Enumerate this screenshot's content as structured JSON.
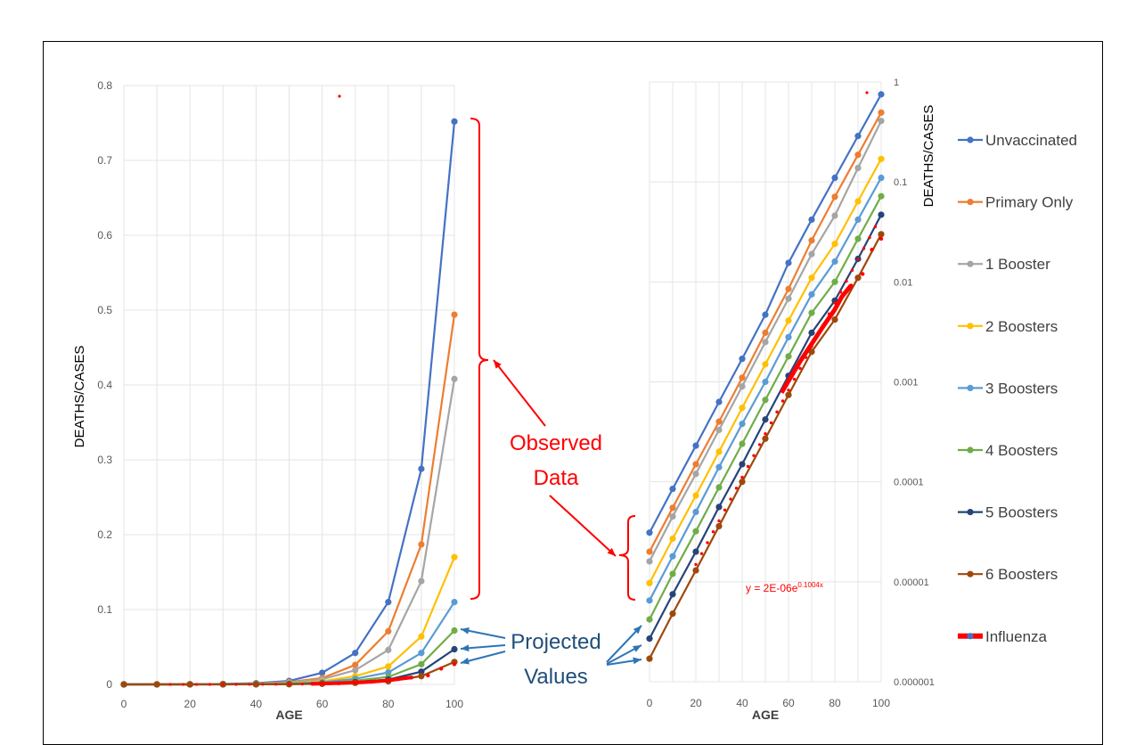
{
  "chart_data": [
    {
      "type": "line",
      "panel": "linear",
      "xlabel": "AGE",
      "ylabel": "DEATHS/CASES",
      "xlim": [
        0,
        100
      ],
      "ylim": [
        0,
        0.8
      ],
      "x_ticks": [
        "0",
        "20",
        "40",
        "60",
        "80",
        "100"
      ],
      "y_ticks": [
        "0",
        "0.1",
        "0.2",
        "0.3",
        "0.4",
        "0.5",
        "0.6",
        "0.7",
        "0.8"
      ],
      "grid": true,
      "x": [
        0,
        10,
        20,
        30,
        40,
        50,
        60,
        70,
        80,
        90,
        100
      ],
      "series": [
        {
          "name": "Unvaccinated",
          "color": "#4472c4",
          "values": [
            3.1e-05,
            8.5e-05,
            0.00023,
            0.00063,
            0.0017,
            0.0047,
            0.0155,
            0.042,
            0.11,
            0.288,
            0.752
          ]
        },
        {
          "name": "Primary Only",
          "color": "#ed7d31",
          "values": [
            2e-05,
            5.5e-05,
            0.00015,
            0.0004,
            0.0011,
            0.0031,
            0.0085,
            0.026,
            0.071,
            0.187,
            0.494
          ]
        },
        {
          "name": "1 Booster",
          "color": "#a5a5a5",
          "values": [
            1.6e-05,
            4.5e-05,
            0.00012,
            0.00033,
            0.0009,
            0.0025,
            0.0068,
            0.019,
            0.046,
            0.138,
            0.408
          ]
        },
        {
          "name": "2 Boosters",
          "color": "#ffc000",
          "values": [
            9.7e-06,
            2.7e-05,
            7.3e-05,
            0.0002,
            0.00055,
            0.0015,
            0.0041,
            0.011,
            0.024,
            0.064,
            0.17
          ]
        },
        {
          "name": "3 Boosters",
          "color": "#5b9bd5",
          "values": [
            6.5e-06,
            1.8e-05,
            5e-05,
            0.00014,
            0.00038,
            0.001,
            0.0028,
            0.0075,
            0.016,
            0.042,
            0.11
          ]
        },
        {
          "name": "4 Boosters",
          "color": "#70ad47",
          "values": [
            4.2e-06,
            1.2e-05,
            3.2e-05,
            8.8e-05,
            0.00024,
            0.00066,
            0.0018,
            0.0049,
            0.01,
            0.027,
            0.072
          ]
        },
        {
          "name": "5 Boosters",
          "color": "#264478",
          "values": [
            2.7e-06,
            7.5e-06,
            2e-05,
            5.6e-05,
            0.00015,
            0.00042,
            0.00115,
            0.0031,
            0.0065,
            0.017,
            0.047
          ]
        },
        {
          "name": "6 Boosters",
          "color": "#9e480e",
          "values": [
            1.7e-06,
            4.8e-06,
            1.3e-05,
            3.6e-05,
            0.0001,
            0.00027,
            0.00074,
            0.002,
            0.0042,
            0.011,
            0.03
          ]
        },
        {
          "name": "Influenza",
          "color": "#ff0000",
          "x": [
            57,
            65,
            70,
            75,
            80,
            83,
            87,
            92,
            96,
            100
          ],
          "values": [
            0.00078,
            0.0016,
            0.0024,
            0.0036,
            0.0053,
            0.0071,
            0.0092,
            0.012,
            0.021,
            0.027
          ]
        }
      ]
    },
    {
      "type": "line",
      "panel": "log",
      "xlabel": "AGE",
      "ylabel": "DEATHS/CASES",
      "xlim": [
        0,
        100
      ],
      "ylim": [
        1e-06,
        1
      ],
      "log_scale": true,
      "x_ticks": [
        "0",
        "20",
        "40",
        "60",
        "80",
        "100"
      ],
      "y_ticks": [
        "1",
        "0.1",
        "0.01",
        "0.001",
        "0.0001",
        "0.00001",
        "0.000001"
      ],
      "grid": true,
      "trendline_label": "y = 2E-06e",
      "trendline_exp": "0.1004x"
    }
  ],
  "legend": [
    {
      "label": "Unvaccinated",
      "color": "#4472c4"
    },
    {
      "label": "Primary Only",
      "color": "#ed7d31"
    },
    {
      "label": "1 Booster",
      "color": "#a5a5a5"
    },
    {
      "label": "2 Boosters",
      "color": "#ffc000"
    },
    {
      "label": "3 Boosters",
      "color": "#5b9bd5"
    },
    {
      "label": "4 Boosters",
      "color": "#70ad47"
    },
    {
      "label": "5 Boosters",
      "color": "#264478"
    },
    {
      "label": "6 Boosters",
      "color": "#9e480e"
    },
    {
      "label": "Influenza",
      "color": "#ff0000"
    }
  ],
  "annotations": {
    "observed_line1": "Observed",
    "observed_line2": "Data",
    "projected_line1": "Projected",
    "projected_line2": "Values"
  }
}
